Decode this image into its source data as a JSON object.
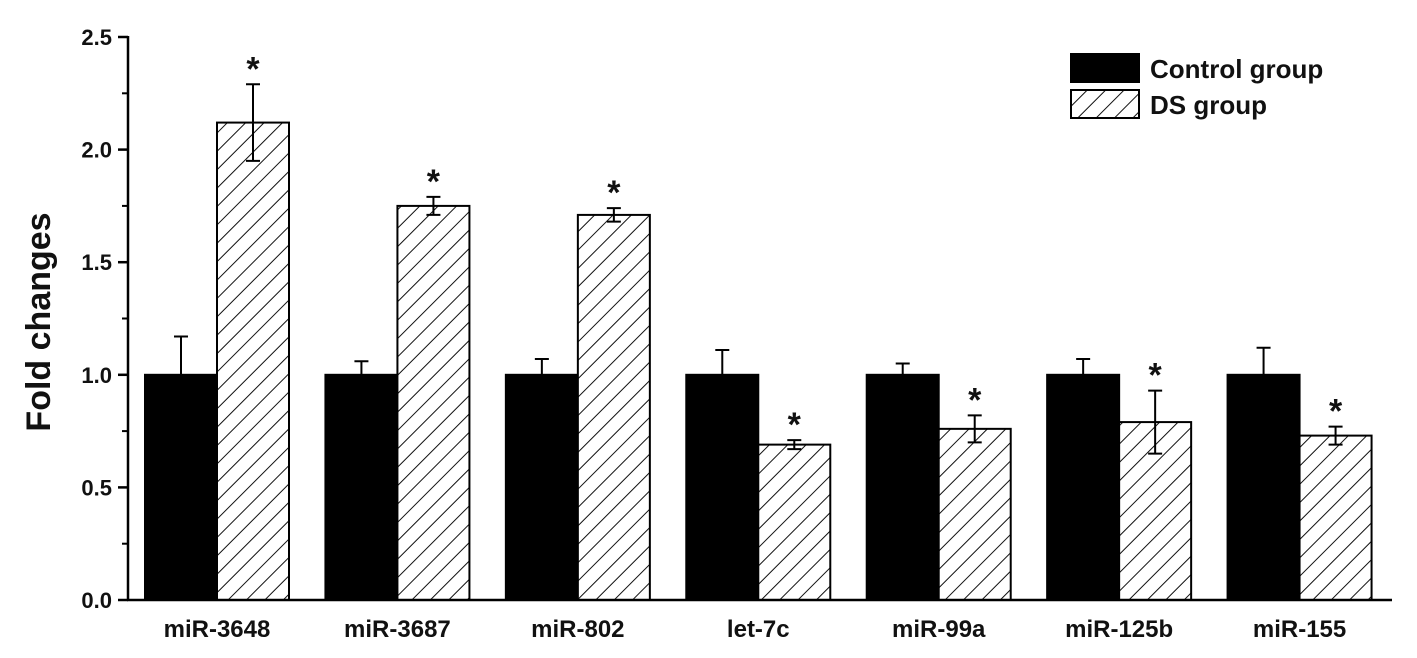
{
  "chart_data": {
    "type": "bar",
    "title": "",
    "xlabel": "",
    "ylabel": "Fold changes",
    "ylim": [
      0,
      2.5
    ],
    "yticks": [
      "0.0",
      "0.5",
      "1.0",
      "1.5",
      "2.0",
      "2.5"
    ],
    "grid": false,
    "legend_position": "top-right",
    "categories": [
      "miR-3648",
      "miR-3687",
      "miR-802",
      "let-7c",
      "miR-99a",
      "miR-125b",
      "miR-155"
    ],
    "series": [
      {
        "name": "Control group",
        "style": "solid",
        "color": "#000000",
        "values": [
          1.0,
          1.0,
          1.0,
          1.0,
          1.0,
          1.0,
          1.0
        ],
        "errors": [
          0.17,
          0.06,
          0.07,
          0.11,
          0.05,
          0.07,
          0.12
        ]
      },
      {
        "name": "DS group",
        "style": "hatched",
        "color": "#000000",
        "values": [
          2.12,
          1.75,
          1.71,
          0.69,
          0.76,
          0.79,
          0.73
        ],
        "errors": [
          0.17,
          0.04,
          0.03,
          0.02,
          0.06,
          0.14,
          0.04
        ],
        "significance": [
          "*",
          "*",
          "*",
          "*",
          "*",
          "*",
          "*"
        ]
      }
    ]
  }
}
